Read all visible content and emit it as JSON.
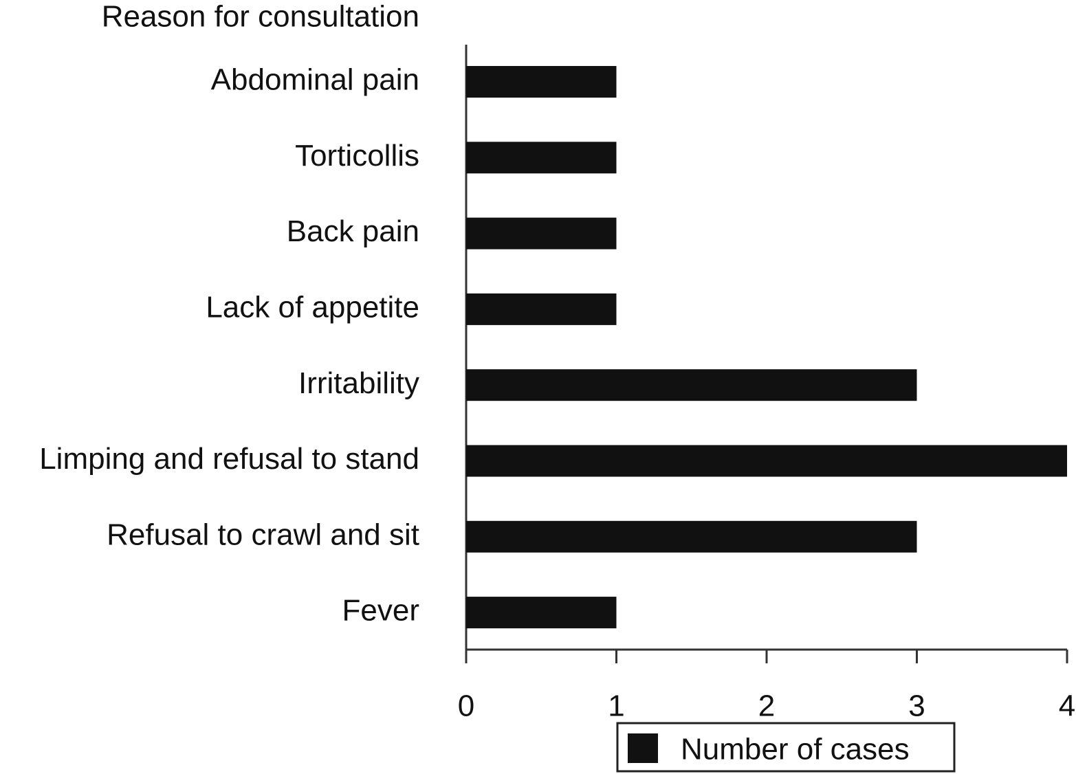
{
  "chart_data": {
    "type": "bar",
    "orientation": "horizontal",
    "title": "Reason for consultation",
    "categories": [
      "Abdominal pain",
      "Torticollis",
      "Back pain",
      "Lack of appetite",
      "Irritability",
      "Limping and refusal to stand",
      "Refusal to crawl and sit",
      "Fever"
    ],
    "series": [
      {
        "name": "Number of cases",
        "color": "#111111",
        "values": [
          1,
          1,
          1,
          1,
          3,
          4,
          3,
          1
        ]
      }
    ],
    "xlim": [
      0,
      4
    ],
    "xticks": [
      0,
      1,
      2,
      3,
      4
    ],
    "grid": false,
    "legend": "bottom"
  }
}
